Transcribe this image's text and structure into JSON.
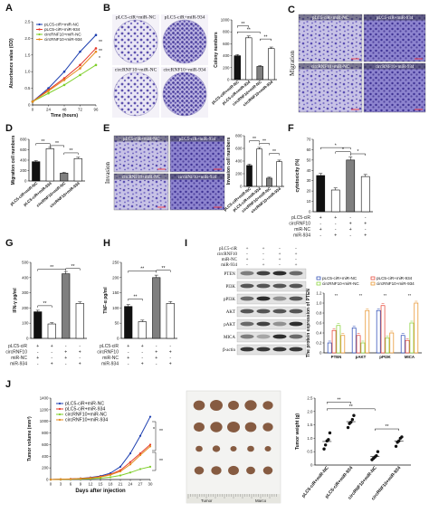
{
  "panel_letters": [
    "A",
    "B",
    "C",
    "D",
    "E",
    "F",
    "G",
    "H",
    "I",
    "J"
  ],
  "groups": [
    "pLC5-ciR+miR-NC",
    "pLC5-ciR+miR-934",
    "circRNF10+miR-NC",
    "circRNF10+miR-934"
  ],
  "colors": {
    "g1": "#1d3fb0",
    "g2": "#e53a2a",
    "g3": "#7fcf2a",
    "g4": "#e58b1c",
    "bar1": "#111111",
    "bar2": "#ffffff",
    "bar3": "#7f7f7f",
    "bar4": "#ffffff"
  },
  "signif": {
    "two": "**",
    "one": "*"
  },
  "images": {
    "migration_side": "Migration",
    "invasion_side": "Invasion",
    "micro_labels": [
      "pLC5-ciR+miR-NC",
      "pLC5-ciR+miR-934",
      "circRNF10+miR-NC",
      "circRNF10+miR-934"
    ],
    "wb_header": [
      "pLC5-ciR",
      "circRNF10",
      "miR-NC",
      "miR-934"
    ],
    "wb_signs": [
      [
        "+",
        "+",
        "-",
        "-"
      ],
      [
        "-",
        "-",
        "+",
        "+"
      ],
      [
        "+",
        "-",
        "+",
        "-"
      ],
      [
        "-",
        "+",
        "-",
        "+"
      ]
    ],
    "wb_proteins": [
      "PTEN",
      "PI3K",
      "pPI3K",
      "AKT",
      "pAKT",
      "MICA",
      "β-actin"
    ],
    "ruler": [
      "Tumor",
      "Marco"
    ]
  },
  "sign_table": {
    "rows": [
      "pLC5-ciR",
      "circRNF10",
      "miR-NC",
      "miR-934"
    ],
    "values": [
      [
        "+",
        "+",
        "-",
        "-"
      ],
      [
        "-",
        "-",
        "+",
        "+"
      ],
      [
        "+",
        "-",
        "+",
        "-"
      ],
      [
        "-",
        "+",
        "-",
        "+"
      ]
    ]
  },
  "chart_data": [
    {
      "panel": "A",
      "type": "line",
      "ylabel": "Absorbance value (OD)",
      "xlabel": "Time (hours)",
      "x": [
        0,
        24,
        48,
        72,
        96
      ],
      "xticks": [
        "0",
        "24",
        "48",
        "72",
        "96"
      ],
      "ylim": [
        0,
        2.5
      ],
      "yticks": [
        "0",
        "0.5",
        "1.0",
        "1.5",
        "2.0",
        "2.5"
      ],
      "series": [
        {
          "name": "pLC5-ciR+miR-NC",
          "values": [
            0.1,
            0.5,
            1.0,
            1.6,
            2.1
          ]
        },
        {
          "name": "pLC5-ciR+miR-934",
          "values": [
            0.1,
            0.45,
            0.8,
            1.2,
            1.7
          ]
        },
        {
          "name": "circRNF10+miR-NC",
          "values": [
            0.1,
            0.35,
            0.6,
            0.9,
            1.2
          ]
        },
        {
          "name": "circRNF10+miR-934",
          "values": [
            0.1,
            0.42,
            0.75,
            1.1,
            1.6
          ]
        }
      ]
    },
    {
      "panel": "B",
      "type": "bar",
      "ylabel": "Colony numbers",
      "ylim": [
        0,
        1000
      ],
      "yticks": [
        "0",
        "200",
        "400",
        "600",
        "800",
        "1000"
      ],
      "categories": [
        "pLC5-ciR+miR-NC",
        "pLC5-ciR+miR-934",
        "circRNF10+miR-NC",
        "circRNF10+miR-934"
      ],
      "values": [
        400,
        700,
        220,
        520
      ],
      "errors": [
        20,
        30,
        15,
        25
      ]
    },
    {
      "panel": "C",
      "type": "bar",
      "ylabel": "Migration cell numbers",
      "ylim": [
        0,
        800
      ],
      "yticks": [
        "0",
        "200",
        "400",
        "600",
        "800"
      ],
      "categories": [
        "pLC5-ciR+miR-NC",
        "pLC5-ciR+miR-934",
        "circRNF10+miR-NC",
        "circRNF10+miR-934"
      ],
      "values": [
        370,
        620,
        150,
        430
      ],
      "errors": [
        20,
        25,
        15,
        25
      ]
    },
    {
      "panel": "D",
      "type": "bar",
      "ylabel": "Invasion cell numbers",
      "ylim": [
        0,
        800
      ],
      "yticks": [
        "0",
        "200",
        "400",
        "600",
        "800"
      ],
      "categories": [
        "pLC5-ciR+miR-NC",
        "pLC5-ciR+miR-934",
        "circRNF10+miR-NC",
        "circRNF10+miR-934"
      ],
      "values": [
        330,
        590,
        130,
        390
      ],
      "errors": [
        20,
        25,
        15,
        25
      ]
    },
    {
      "panel": "E",
      "type": "bar",
      "ylabel": "cytotoxicity (%)",
      "ylim": [
        0,
        70
      ],
      "yticks": [
        "0",
        "10",
        "20",
        "30",
        "40",
        "50",
        "60",
        "70"
      ],
      "categories": [
        "pLC5-ciR+miR-NC",
        "pLC5-ciR+miR-934",
        "circRNF10+miR-NC",
        "circRNF10+miR-934"
      ],
      "values": [
        35,
        21,
        50,
        34
      ],
      "errors": [
        2,
        2,
        3,
        2
      ]
    },
    {
      "panel": "F",
      "type": "bar",
      "ylabel": "IFN-γ pg/ml",
      "ylim": [
        0,
        500
      ],
      "yticks": [
        "0",
        "100",
        "200",
        "300",
        "400",
        "500"
      ],
      "categories": [
        "pLC5-ciR+miR-NC",
        "pLC5-ciR+miR-934",
        "circRNF10+miR-NC",
        "circRNF10+miR-934"
      ],
      "values": [
        175,
        95,
        425,
        230
      ],
      "errors": [
        10,
        8,
        15,
        10
      ]
    },
    {
      "panel": "G",
      "type": "bar",
      "ylabel": "TNF-α pg/ml",
      "ylim": [
        0,
        250
      ],
      "yticks": [
        "0",
        "50",
        "100",
        "150",
        "200",
        "250"
      ],
      "categories": [
        "pLC5-ciR+miR-NC",
        "pLC5-ciR+miR-934",
        "circRNF10+miR-NC",
        "circRNF10+miR-934"
      ],
      "values": [
        105,
        55,
        200,
        115
      ],
      "errors": [
        6,
        5,
        8,
        6
      ]
    },
    {
      "panel": "H",
      "type": "bar",
      "ylabel": "The protein expression of PTEN",
      "ylim": [
        0,
        1.2
      ],
      "yticks": [
        "0",
        "0.2",
        "0.4",
        "0.6",
        "0.8",
        "1.0",
        "1.2"
      ],
      "categories": [
        "PTEN",
        "pAKT",
        "pPI3K",
        "MICA"
      ],
      "series": [
        {
          "name": "pLC5-ciR+miR-NC",
          "values": [
            0.2,
            0.5,
            0.85,
            0.35
          ]
        },
        {
          "name": "pLC5-ciR+miR-934",
          "values": [
            0.45,
            0.35,
            0.95,
            0.25
          ]
        },
        {
          "name": "circRNF10+miR-NC",
          "values": [
            0.55,
            0.2,
            0.3,
            0.6
          ]
        },
        {
          "name": "circRNF10+miR-934",
          "values": [
            0.35,
            0.85,
            0.4,
            1.0
          ]
        }
      ]
    },
    {
      "panel": "I",
      "type": "line",
      "ylabel": "Tumor volume (mm³)",
      "xlabel": "Days after injection",
      "x": [
        0,
        3,
        6,
        9,
        12,
        15,
        18,
        21,
        24,
        27,
        30
      ],
      "xticks": [
        "0",
        "3",
        "6",
        "9",
        "12",
        "15",
        "18",
        "21",
        "24",
        "27",
        "30"
      ],
      "ylim": [
        0,
        1400
      ],
      "yticks": [
        "0",
        "200",
        "400",
        "600",
        "800",
        "1000",
        "1200",
        "1400"
      ],
      "series": [
        {
          "name": "pLC5-ciR+miR-NC",
          "values": [
            0,
            5,
            10,
            20,
            35,
            60,
            110,
            220,
            450,
            750,
            1080
          ]
        },
        {
          "name": "pLC5-ciR+miR-934",
          "values": [
            0,
            5,
            10,
            18,
            30,
            50,
            90,
            160,
            300,
            450,
            600
          ]
        },
        {
          "name": "circRNF10+miR-NC",
          "values": [
            0,
            3,
            6,
            10,
            15,
            25,
            40,
            70,
            120,
            180,
            220
          ]
        },
        {
          "name": "circRNF10+miR-934",
          "values": [
            0,
            4,
            8,
            15,
            25,
            45,
            80,
            140,
            260,
            420,
            570
          ]
        }
      ]
    },
    {
      "panel": "J",
      "type": "scatter",
      "ylabel": "Tumor weight (g)",
      "ylim": [
        0,
        2.5
      ],
      "yticks": [
        "0",
        "0.5",
        "1.0",
        "1.5",
        "2.0",
        "2.5"
      ],
      "categories": [
        "pLC5-ciR+miR-NC",
        "pLC5-ciR+miR-934",
        "circRNF10+miR-NC",
        "circRNF10+miR-934"
      ],
      "points": [
        [
          0.6,
          0.75,
          0.9,
          0.95,
          1.2
        ],
        [
          1.4,
          1.55,
          1.6,
          1.7,
          1.85
        ],
        [
          0.2,
          0.25,
          0.3,
          0.35,
          0.5
        ],
        [
          0.7,
          0.85,
          0.9,
          1.0,
          1.05
        ]
      ],
      "means": [
        0.88,
        1.62,
        0.32,
        0.9
      ]
    }
  ]
}
